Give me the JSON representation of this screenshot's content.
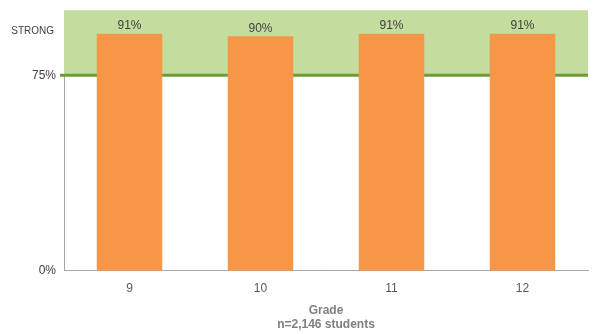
{
  "chart_data": {
    "type": "bar",
    "categories": [
      "9",
      "10",
      "11",
      "12"
    ],
    "values": [
      91,
      90,
      91,
      91
    ],
    "value_labels": [
      "91%",
      "90%",
      "91%",
      "91%"
    ],
    "data_labels": true,
    "color": "#f79646",
    "x_label": "Grade",
    "x_sublabel": "n=2,146 students",
    "ylim": [
      0,
      100
    ],
    "yticks": [
      {
        "value": 0,
        "label": "0%"
      },
      {
        "value": 75,
        "label": "75%"
      }
    ],
    "grid": false,
    "annotations": [
      {
        "label": "STRONG",
        "ymin": 75,
        "ymax": 100,
        "color": "#c4dd9f",
        "line_color": "#6f9a32"
      }
    ]
  }
}
